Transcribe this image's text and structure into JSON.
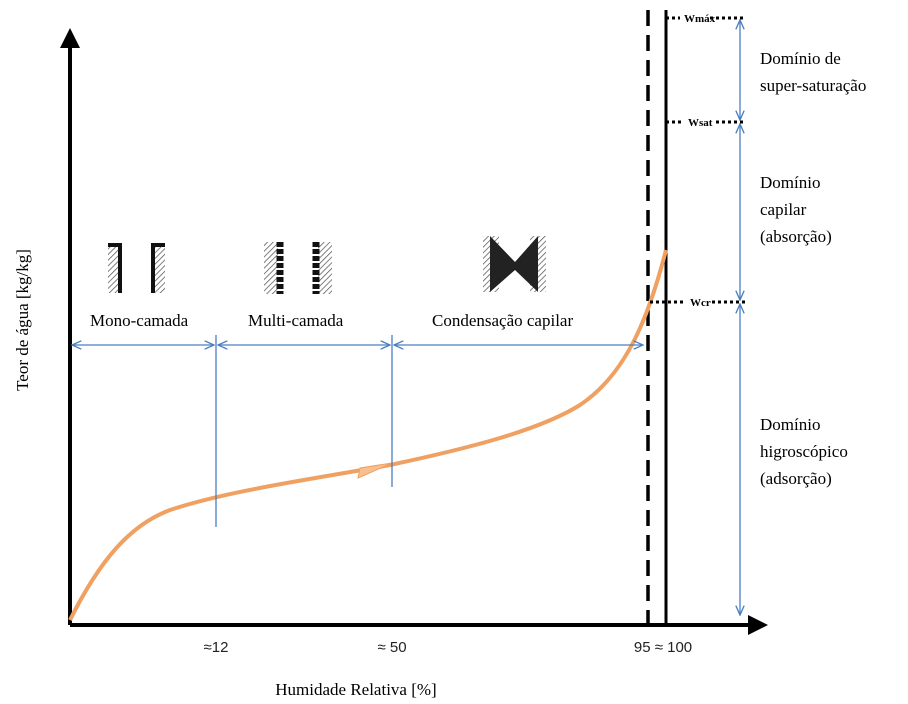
{
  "axes": {
    "y_label": "Teor de água [kg/kg]",
    "x_label": "Humidade Relativa [%]",
    "x_marks": [
      "≈12",
      "≈ 50",
      "95 ≈ 100"
    ]
  },
  "regions": [
    {
      "label": "Mono-camada"
    },
    {
      "label": "Multi-camada"
    },
    {
      "label": "Condensação capilar"
    }
  ],
  "levels": [
    {
      "label": "Wmáx"
    },
    {
      "label": "Wsat"
    },
    {
      "label": "Wcr"
    }
  ],
  "domains": [
    {
      "lines": [
        "Domínio de",
        "super-saturação"
      ]
    },
    {
      "lines": [
        "Domínio",
        "capilar",
        "(absorção)"
      ]
    },
    {
      "lines": [
        "Domínio",
        "higroscópico",
        "(adsorção)"
      ]
    }
  ]
}
